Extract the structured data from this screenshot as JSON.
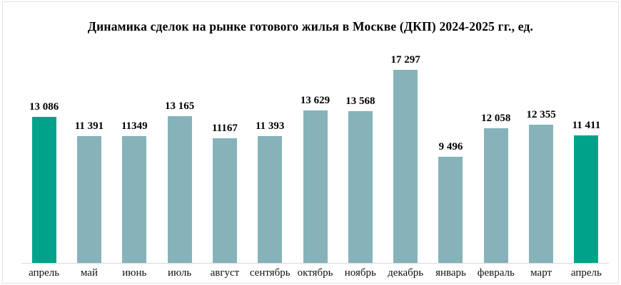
{
  "title": "Динамика сделок на рынке готового жилья в Москве (ДКП) 2024-2025 гг., ед.",
  "chart_data": {
    "type": "bar",
    "title": "Динамика сделок на рынке готового жилья в Москве (ДКП) 2024-2025 гг., ед.",
    "categories": [
      "апрель",
      "май",
      "июнь",
      "июль",
      "август",
      "сентябрь",
      "октябрь",
      "ноябрь",
      "декабрь",
      "январь",
      "февраль",
      "март",
      "апрель"
    ],
    "values": [
      13086,
      11391,
      11349,
      13165,
      11167,
      11393,
      13629,
      13568,
      17297,
      9496,
      12058,
      12355,
      11411
    ],
    "value_labels": [
      "13 086",
      "11 391",
      "11349",
      "13 165",
      "11167",
      "11 393",
      "13 629",
      "13 568",
      "17 297",
      "9 496",
      "12 058",
      "12 355",
      "11 411"
    ],
    "highlight_indices": [
      0,
      12
    ],
    "xlabel": "",
    "ylabel": "",
    "ylim": [
      0,
      17297
    ],
    "grid": false,
    "legend": false,
    "colors": {
      "bar": "#86b3ba",
      "bar_highlight": "#00a389",
      "axis_line": "#d9d9d9",
      "text": "#000000"
    }
  }
}
